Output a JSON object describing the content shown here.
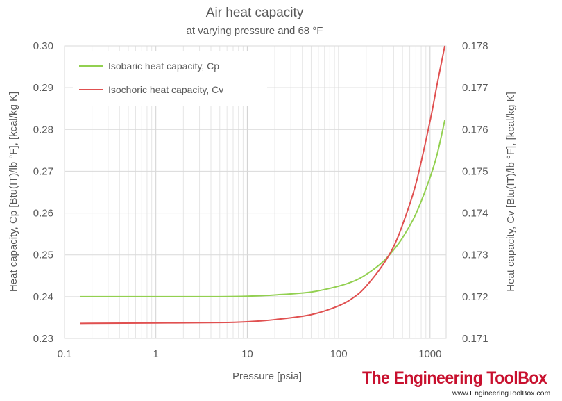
{
  "chart_data": {
    "type": "line",
    "title": "Air heat capacity",
    "subtitle": "at varying pressure and 68 °F",
    "xlabel": "Pressure [psia]",
    "x_scale": "log",
    "xlim": [
      0.1,
      1500
    ],
    "x_ticks": [
      "0.1",
      "1",
      "10",
      "100",
      "1000"
    ],
    "ylabel_left": "Heat capacity, Cp [Btu(IT)/lb °F], [kcal/kg K]",
    "ylim_left": [
      0.23,
      0.3
    ],
    "y_ticks_left": [
      "0.23",
      "0.24",
      "0.25",
      "0.26",
      "0.27",
      "0.28",
      "0.29",
      "0.30"
    ],
    "ylabel_right": "Heat capacity, Cv [Btu(IT)/lb °F], [kcal/kg K]",
    "ylim_right": [
      0.171,
      0.178
    ],
    "y_ticks_right": [
      "0.171",
      "0.172",
      "0.173",
      "0.174",
      "0.175",
      "0.176",
      "0.177",
      "0.178"
    ],
    "grid": true,
    "legend_position": "top-left",
    "series": [
      {
        "name": "Isobaric heat capacity, Cp",
        "axis": "left",
        "color": "#92d050",
        "x": [
          0.147,
          1,
          5,
          10,
          20,
          50,
          100,
          150,
          200,
          300,
          400,
          500,
          700,
          1000,
          1200,
          1450
        ],
        "y": [
          0.24,
          0.24,
          0.24,
          0.2401,
          0.2404,
          0.2411,
          0.2425,
          0.2438,
          0.2453,
          0.2482,
          0.2512,
          0.2541,
          0.2598,
          0.2685,
          0.2742,
          0.2822
        ]
      },
      {
        "name": "Isochoric heat capacity, Cv",
        "axis": "right",
        "color": "#e05050",
        "x": [
          0.147,
          1,
          5,
          10,
          20,
          50,
          100,
          150,
          200,
          300,
          400,
          500,
          700,
          1000,
          1200,
          1450
        ],
        "y": [
          0.17136,
          0.17137,
          0.17138,
          0.1714,
          0.17145,
          0.17157,
          0.17178,
          0.172,
          0.17225,
          0.17274,
          0.1732,
          0.17372,
          0.1747,
          0.1762,
          0.1771,
          0.178
        ]
      }
    ]
  },
  "branding": {
    "name": "The Engineering ToolBox",
    "url": "www.EngineeringToolBox.com"
  }
}
